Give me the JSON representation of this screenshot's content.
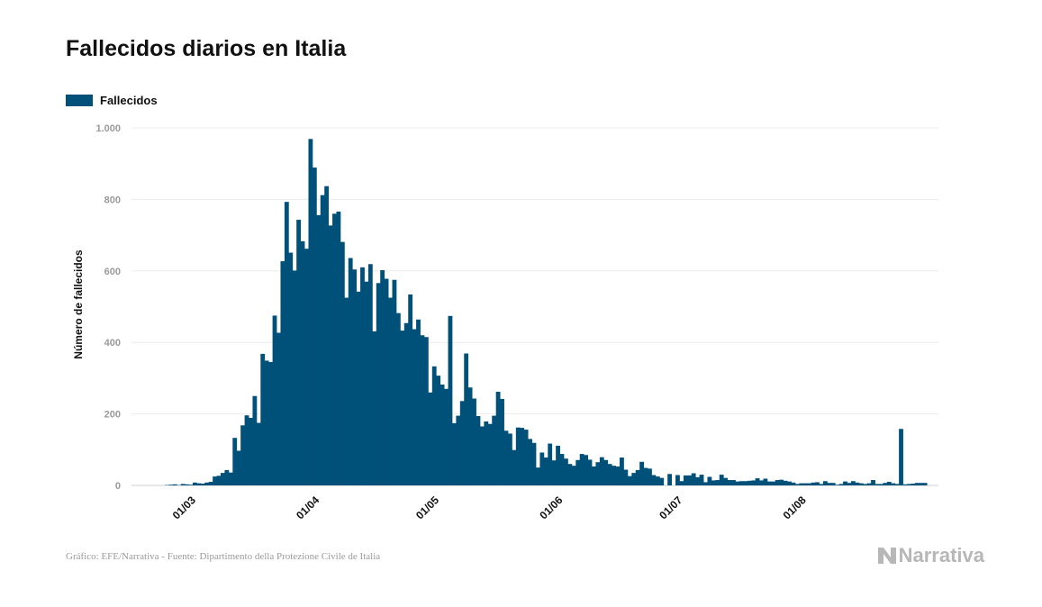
{
  "title": "Fallecidos diarios en Italia",
  "legend": {
    "label": "Fallecidos",
    "color": "#00517a"
  },
  "footer": {
    "source": "Gráfico: EFE/Narrativa - Fuente: Dipartimento della Protezione Civile de Italia",
    "brand": "Narrativa"
  },
  "chart_data": {
    "type": "bar",
    "ylabel": "Número de fallecidos",
    "ylim": [
      0,
      1000
    ],
    "yticks": [
      0,
      200,
      400,
      600,
      800,
      1000
    ],
    "ytick_labels": [
      "0",
      "200",
      "400",
      "600",
      "800",
      "1.000"
    ],
    "xtick_labels": [
      "01/03",
      "01/04",
      "01/05",
      "01/06",
      "01/07",
      "01/08"
    ],
    "grid": true,
    "legend_position": "top-left",
    "series": [
      {
        "name": "Fallecidos",
        "color": "#00517a",
        "x_start": "2020-02-24",
        "values": [
          1,
          2,
          3,
          1,
          4,
          3,
          2,
          8,
          6,
          5,
          8,
          10,
          25,
          27,
          35,
          43,
          36,
          133,
          97,
          168,
          196,
          189,
          250,
          175,
          368,
          349,
          345,
          475,
          427,
          627,
          793,
          651,
          601,
          743,
          683,
          662,
          969,
          889,
          756,
          812,
          837,
          727,
          760,
          766,
          681,
          525,
          636,
          604,
          542,
          610,
          570,
          619,
          431,
          566,
          602,
          578,
          525,
          575,
          482,
          433,
          454,
          534,
          437,
          464,
          420,
          415,
          260,
          333,
          307,
          282,
          270,
          474,
          174,
          195,
          236,
          369,
          274,
          243,
          194,
          165,
          179,
          172,
          195,
          262,
          242,
          153,
          145,
          99,
          162,
          161,
          156,
          130,
          119,
          50,
          92,
          78,
          117,
          70,
          111,
          88,
          75,
          60,
          55,
          71,
          88,
          85,
          72,
          53,
          65,
          79,
          71,
          60,
          55,
          53,
          78,
          44,
          26,
          35,
          43,
          66,
          49,
          47,
          29,
          25,
          21
        ],
        "tail_values": [
          0,
          32,
          0,
          29,
          12,
          28,
          28,
          34,
          23,
          30,
          9,
          24,
          14,
          15,
          30,
          21,
          15,
          15,
          11,
          12,
          12,
          13,
          14,
          20,
          14,
          19,
          11,
          11,
          15,
          16,
          13,
          11,
          8,
          4,
          6,
          6,
          6,
          8,
          9,
          4,
          12,
          7,
          7,
          2,
          4,
          11,
          7,
          12,
          8,
          6,
          4,
          6,
          15,
          4,
          4,
          7,
          10,
          6,
          4,
          158,
          3,
          4,
          5,
          7,
          7,
          7
        ]
      }
    ]
  }
}
